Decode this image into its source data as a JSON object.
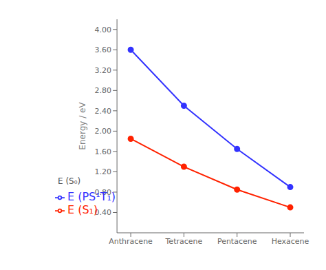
{
  "chart_data": {
    "type": "line",
    "categories": [
      "Anthracene",
      "Tetracene",
      "Pentacene",
      "Hexacene"
    ],
    "series": [
      {
        "name": "E (S₁)",
        "color": "#ff2200",
        "values": [
          1.85,
          1.3,
          0.85,
          0.5
        ]
      },
      {
        "name": "E (PS¹T₁)",
        "color": "#3333ff",
        "values": [
          3.6,
          2.5,
          1.65,
          0.9
        ]
      }
    ],
    "y_label": "Energy / eV",
    "annotations": [
      "E (S₀)"
    ],
    "ylim": [
      0.0,
      4.2
    ],
    "yticks": [
      {
        "value": 0.4,
        "label": "0.40"
      },
      {
        "value": 0.8,
        "label": "0.80"
      },
      {
        "value": 1.2,
        "label": "1.20"
      },
      {
        "value": 1.6,
        "label": "1.60"
      },
      {
        "value": 2.0,
        "label": "2.00"
      },
      {
        "value": 2.4,
        "label": "2.40"
      },
      {
        "value": 2.8,
        "label": "2.80"
      },
      {
        "value": 3.2,
        "label": "3.20"
      },
      {
        "value": 3.6,
        "label": "3.60"
      },
      {
        "value": 4.0,
        "label": "4.00"
      }
    ],
    "grid": false,
    "legend": "lower left",
    "marker": "circle"
  }
}
